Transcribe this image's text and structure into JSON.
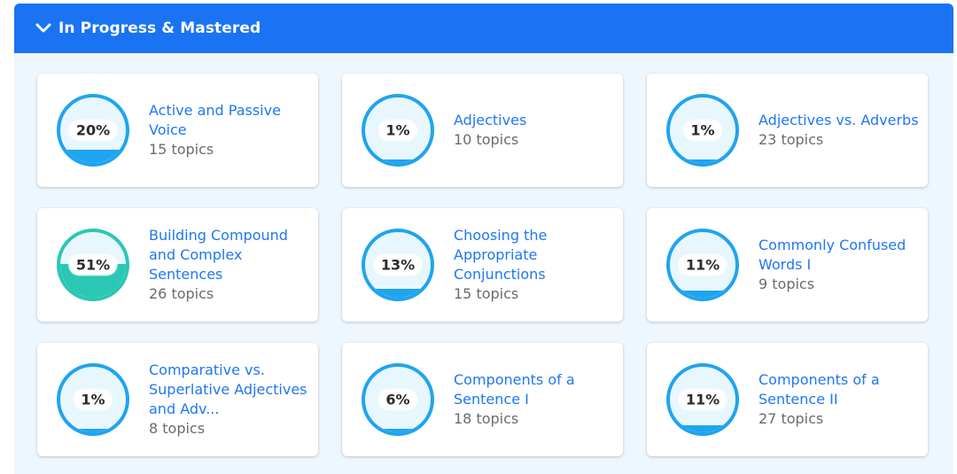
{
  "section": {
    "title": "In Progress & Mastered",
    "header_color": "#1a73f3"
  },
  "cards": [
    {
      "percent_label": "20%",
      "progress": 0.2,
      "title": "Active and Passive Voice",
      "topics": "15 topics",
      "status": "in-progress"
    },
    {
      "percent_label": "1%",
      "progress": 0.01,
      "title": "Adjectives",
      "topics": "10 topics",
      "status": "in-progress"
    },
    {
      "percent_label": "1%",
      "progress": 0.01,
      "title": "Adjectives vs. Adverbs",
      "topics": "23 topics",
      "status": "in-progress"
    },
    {
      "percent_label": "51%",
      "progress": 0.51,
      "title": "Building Compound and Complex Sentences",
      "topics": "26 topics",
      "status": "mastered"
    },
    {
      "percent_label": "13%",
      "progress": 0.13,
      "title": "Choosing the Appropriate Conjunctions",
      "topics": "15 topics",
      "status": "in-progress"
    },
    {
      "percent_label": "11%",
      "progress": 0.11,
      "title": "Commonly Confused Words I",
      "topics": "9 topics",
      "status": "in-progress"
    },
    {
      "percent_label": "1%",
      "progress": 0.01,
      "title": "Comparative vs. Superlative Adjectives and Adv...",
      "topics": "8 topics",
      "status": "in-progress"
    },
    {
      "percent_label": "6%",
      "progress": 0.06,
      "title": "Components of a Sentence I",
      "topics": "18 topics",
      "status": "in-progress"
    },
    {
      "percent_label": "11%",
      "progress": 0.11,
      "title": "Components of a Sentence II",
      "topics": "27 topics",
      "status": "in-progress"
    }
  ],
  "colors": {
    "progress_blue": "#1fa4f0",
    "mastered_teal": "#2ac7b4",
    "title_link": "#1f77f0"
  }
}
